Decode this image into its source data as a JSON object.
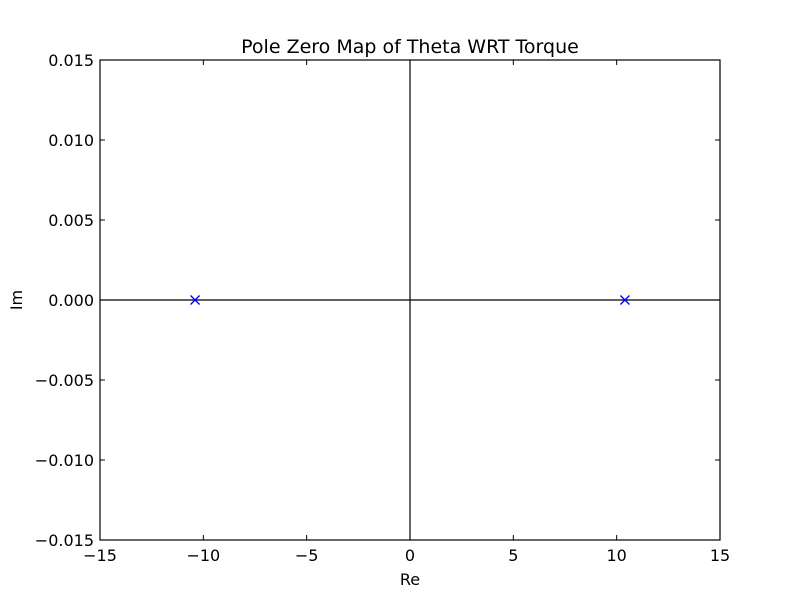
{
  "chart_data": {
    "type": "scatter",
    "title": "Pole Zero Map of Theta WRT Torque",
    "xlabel": "Re",
    "ylabel": "Im",
    "xlim": [
      -15,
      15
    ],
    "ylim": [
      -0.015,
      0.015
    ],
    "x_ticks": [
      -15,
      -10,
      -5,
      0,
      5,
      10,
      15
    ],
    "x_tick_labels": [
      "−15",
      "−10",
      "−5",
      "0",
      "5",
      "10",
      "15"
    ],
    "y_ticks": [
      -0.015,
      -0.01,
      -0.005,
      0,
      0.005,
      0.01,
      0.015
    ],
    "y_tick_labels": [
      "−0.015",
      "−0.010",
      "−0.005",
      "0.000",
      "0.005",
      "0.010",
      "0.015"
    ],
    "grid": false,
    "zero_lines": true,
    "marker": "x",
    "series": [
      {
        "color": "#0000ff",
        "points": [
          {
            "x": -10.4,
            "y": 0
          },
          {
            "x": 10.4,
            "y": 0
          }
        ]
      }
    ]
  }
}
